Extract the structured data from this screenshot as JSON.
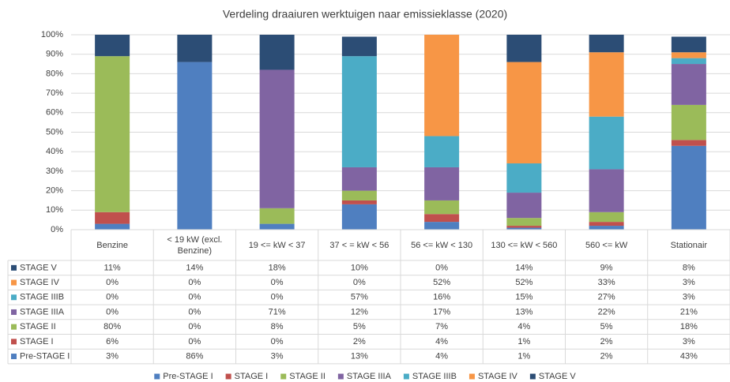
{
  "chart_data": {
    "type": "stacked_bar",
    "title": "Verdeling draaiuren werktuigen naar emissieklasse (2020)",
    "categories": [
      "Benzine",
      "< 19 kW (excl. Benzine)",
      "19 <= kW < 37",
      "37 < = kW < 56",
      "56 <= kW < 130",
      "130 <= kW < 560",
      "560 <= kW",
      "Stationair"
    ],
    "series": [
      {
        "name": "Pre-STAGE I",
        "color": "#4f7fc0",
        "values": [
          3,
          86,
          3,
          13,
          4,
          1,
          2,
          43
        ],
        "value_labels": [
          "3%",
          "86%",
          "3%",
          "13%",
          "4%",
          "1%",
          "2%",
          "43%"
        ]
      },
      {
        "name": "STAGE I",
        "color": "#c0504d",
        "values": [
          6,
          0,
          0,
          2,
          4,
          1,
          2,
          3
        ],
        "value_labels": [
          "6%",
          "0%",
          "0%",
          "2%",
          "4%",
          "1%",
          "2%",
          "3%"
        ]
      },
      {
        "name": "STAGE II",
        "color": "#9bbb59",
        "values": [
          80,
          0,
          8,
          5,
          7,
          4,
          5,
          18
        ],
        "value_labels": [
          "80%",
          "0%",
          "8%",
          "5%",
          "7%",
          "4%",
          "5%",
          "18%"
        ]
      },
      {
        "name": "STAGE IIIA",
        "color": "#8064a2",
        "values": [
          0,
          0,
          71,
          12,
          17,
          13,
          22,
          21
        ],
        "value_labels": [
          "0%",
          "0%",
          "71%",
          "12%",
          "17%",
          "13%",
          "22%",
          "21%"
        ]
      },
      {
        "name": "STAGE IIIB",
        "color": "#4bacc6",
        "values": [
          0,
          0,
          0,
          57,
          16,
          15,
          27,
          3
        ],
        "value_labels": [
          "0%",
          "0%",
          "0%",
          "57%",
          "16%",
          "15%",
          "27%",
          "3%"
        ]
      },
      {
        "name": "STAGE IV",
        "color": "#f79646",
        "values": [
          0,
          0,
          0,
          0,
          52,
          52,
          33,
          3
        ],
        "value_labels": [
          "0%",
          "0%",
          "0%",
          "0%",
          "52%",
          "52%",
          "33%",
          "3%"
        ]
      },
      {
        "name": "STAGE V",
        "color": "#2c4d75",
        "values": [
          11,
          14,
          18,
          10,
          0,
          14,
          9,
          8
        ],
        "value_labels": [
          "11%",
          "14%",
          "18%",
          "10%",
          "0%",
          "14%",
          "9%",
          "8%"
        ]
      }
    ],
    "ylim": [
      0,
      100
    ],
    "yticks": [
      {
        "value": 0,
        "label": "0%"
      },
      {
        "value": 10,
        "label": "10%"
      },
      {
        "value": 20,
        "label": "20%"
      },
      {
        "value": 30,
        "label": "30%"
      },
      {
        "value": 40,
        "label": "40%"
      },
      {
        "value": 50,
        "label": "50%"
      },
      {
        "value": 60,
        "label": "60%"
      },
      {
        "value": 70,
        "label": "70%"
      },
      {
        "value": 80,
        "label": "80%"
      },
      {
        "value": 90,
        "label": "90%"
      },
      {
        "value": 100,
        "label": "100%"
      }
    ],
    "grid": true
  }
}
